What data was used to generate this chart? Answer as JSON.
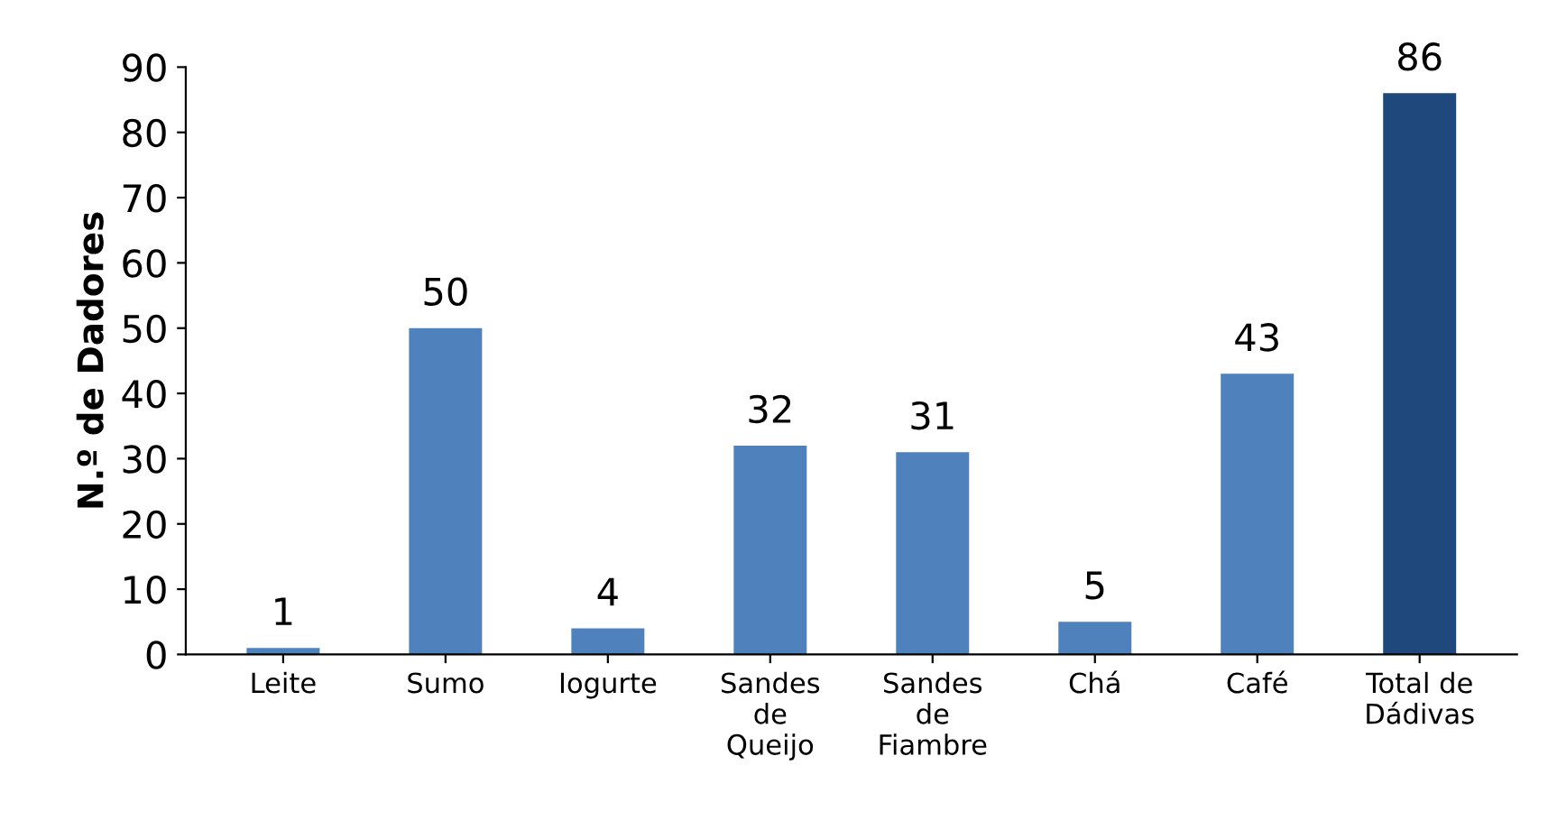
{
  "chart_data": {
    "type": "bar",
    "ylabel": "N.º de Dadores",
    "categories": [
      "Leite",
      "Sumo",
      "Iogurte",
      "Sandes\nde\nQueijo",
      "Sandes\nde\nFiambre",
      "Chá",
      "Café",
      "Total de\nDádivas"
    ],
    "values": [
      1,
      50,
      4,
      32,
      31,
      5,
      43,
      86
    ],
    "colors": [
      "#4f81bd",
      "#4f81bd",
      "#4f81bd",
      "#4f81bd",
      "#4f81bd",
      "#4f81bd",
      "#4f81bd",
      "#1f497d"
    ],
    "ylim": [
      0,
      90
    ],
    "yticks": [
      0,
      10,
      20,
      30,
      40,
      50,
      60,
      70,
      80,
      90
    ],
    "data_labels": true,
    "grid": false,
    "legend": false
  }
}
